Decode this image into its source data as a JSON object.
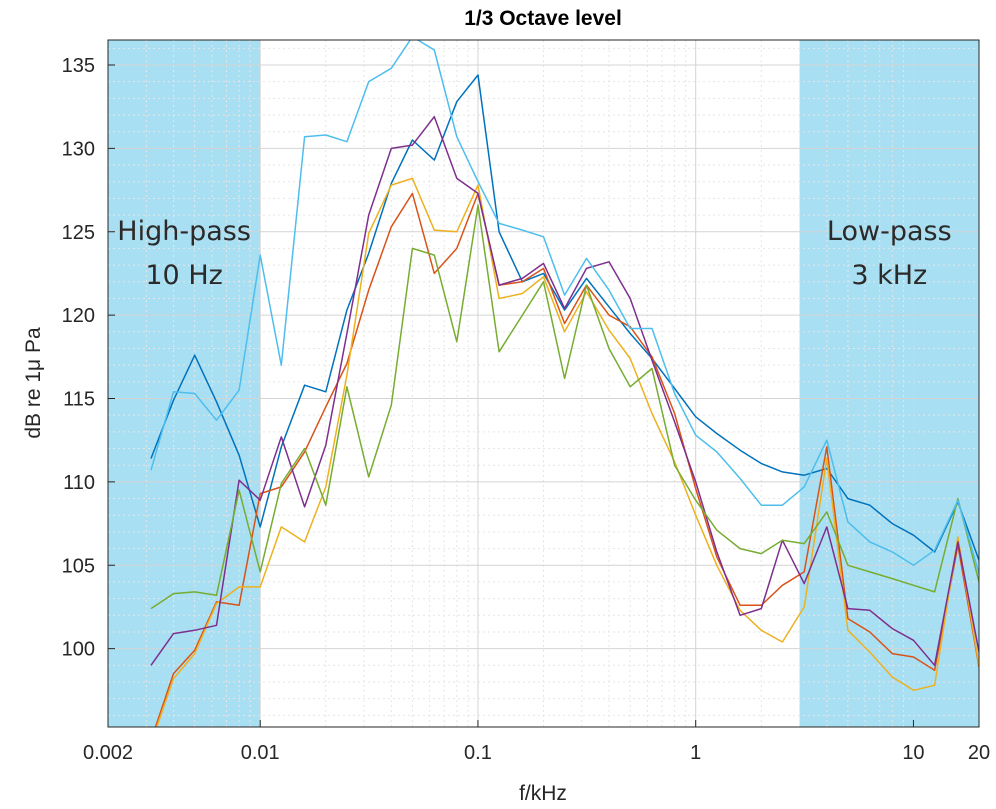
{
  "chart_data": {
    "type": "line",
    "title": "1/3 Octave level",
    "xlabel": "f/kHz",
    "ylabel": "dB re 1μ Pa",
    "xscale": "log",
    "xlim": [
      0.002,
      20
    ],
    "ylim": [
      95.3,
      136.5
    ],
    "grid": true,
    "x_tick_labels": [
      "0.002",
      "0.01",
      "0.1",
      "1",
      "10",
      "20"
    ],
    "x_ticks": [
      0.002,
      0.01,
      0.1,
      1,
      10,
      20
    ],
    "y_ticks": [
      100,
      105,
      110,
      115,
      120,
      125,
      130,
      135
    ],
    "y_tick_labels": [
      "100",
      "105",
      "110",
      "115",
      "120",
      "125",
      "130",
      "135"
    ],
    "shaded_regions": [
      {
        "x_range": [
          0.002,
          0.01
        ],
        "label_line1": "High-pass",
        "label_line2": "10 Hz",
        "color": "#a9dff2"
      },
      {
        "x_range": [
          3,
          20
        ],
        "label_line1": "Low-pass",
        "label_line2": "3 kHz",
        "color": "#a9dff2"
      }
    ],
    "x": [
      0.00315,
      0.004,
      0.005,
      0.0063,
      0.008,
      0.01,
      0.0125,
      0.016,
      0.02,
      0.025,
      0.0315,
      0.04,
      0.05,
      0.063,
      0.08,
      0.1,
      0.125,
      0.16,
      0.2,
      0.25,
      0.315,
      0.4,
      0.5,
      0.63,
      0.8,
      1,
      1.25,
      1.6,
      2,
      2.5,
      3.15,
      4,
      5,
      6.3,
      8,
      10,
      12.5,
      16,
      20
    ],
    "series": [
      {
        "color": "#0072bd",
        "values": [
          111.4,
          114.9,
          117.6,
          114.8,
          111.6,
          107.3,
          112.1,
          115.8,
          115.4,
          120.3,
          123.7,
          127.9,
          130.5,
          129.3,
          132.8,
          134.4,
          125.0,
          122.0,
          122.5,
          120.3,
          122.2,
          120.5,
          118.9,
          117.4,
          115.6,
          113.9,
          112.9,
          111.9,
          111.1,
          110.6,
          110.4,
          110.8,
          109.0,
          108.6,
          107.5,
          106.8,
          105.8,
          108.8,
          105.3
        ]
      },
      {
        "color": "#d95319",
        "values": [
          94.5,
          98.5,
          99.9,
          102.8,
          102.6,
          109.3,
          109.7,
          111.8,
          114.5,
          117.1,
          121.5,
          125.3,
          127.3,
          122.5,
          124.0,
          127.3,
          121.8,
          122.0,
          122.8,
          119.5,
          121.8,
          120.0,
          119.3,
          117.5,
          114.1,
          109.6,
          105.5,
          102.6,
          102.6,
          103.8,
          104.6,
          112.1,
          101.8,
          101.0,
          99.7,
          99.5,
          98.7,
          106.2,
          98.9
        ]
      },
      {
        "color": "#edb120",
        "values": [
          94.3,
          98.2,
          99.7,
          102.7,
          103.7,
          103.7,
          107.3,
          106.4,
          109.7,
          116.4,
          124.9,
          127.8,
          128.2,
          125.1,
          125.0,
          127.8,
          121.0,
          121.3,
          122.3,
          119.0,
          121.4,
          119.1,
          117.4,
          114.1,
          111.2,
          108.0,
          105.0,
          102.3,
          101.1,
          100.4,
          102.5,
          111.4,
          101.1,
          99.8,
          98.3,
          97.5,
          97.8,
          106.7,
          99.0
        ]
      },
      {
        "color": "#7e2f8e",
        "values": [
          99.0,
          100.9,
          101.1,
          101.4,
          110.1,
          108.9,
          112.7,
          108.5,
          112.2,
          118.9,
          126.0,
          130.0,
          130.2,
          131.9,
          128.2,
          127.3,
          121.8,
          122.2,
          123.1,
          120.4,
          122.8,
          123.2,
          121.0,
          117.3,
          113.6,
          110.0,
          105.8,
          102.0,
          102.4,
          106.5,
          103.9,
          107.3,
          102.4,
          102.3,
          101.2,
          100.5,
          99.0,
          106.4,
          99.8
        ]
      },
      {
        "color": "#77ac30",
        "values": [
          102.4,
          103.3,
          103.4,
          103.2,
          109.5,
          104.6,
          109.9,
          112.0,
          108.6,
          115.7,
          110.3,
          114.6,
          124.0,
          123.6,
          118.4,
          126.6,
          117.8,
          120.0,
          122.0,
          116.2,
          121.8,
          118.0,
          115.7,
          116.8,
          111.0,
          108.9,
          107.1,
          106.0,
          105.7,
          106.5,
          106.3,
          108.2,
          105.0,
          104.6,
          104.2,
          103.8,
          103.4,
          109.0,
          104.0
        ]
      },
      {
        "color": "#4dbeee",
        "values": [
          110.7,
          115.4,
          115.3,
          113.7,
          115.5,
          123.6,
          117.0,
          130.7,
          130.8,
          130.4,
          134.0,
          134.8,
          136.7,
          135.9,
          130.7,
          128.0,
          125.5,
          125.1,
          124.7,
          121.2,
          123.4,
          121.5,
          119.2,
          119.2,
          115.3,
          112.8,
          111.8,
          110.2,
          108.6,
          108.6,
          109.7,
          112.5,
          107.6,
          106.4,
          105.8,
          105.0,
          105.9,
          108.9,
          104.5
        ]
      }
    ]
  }
}
